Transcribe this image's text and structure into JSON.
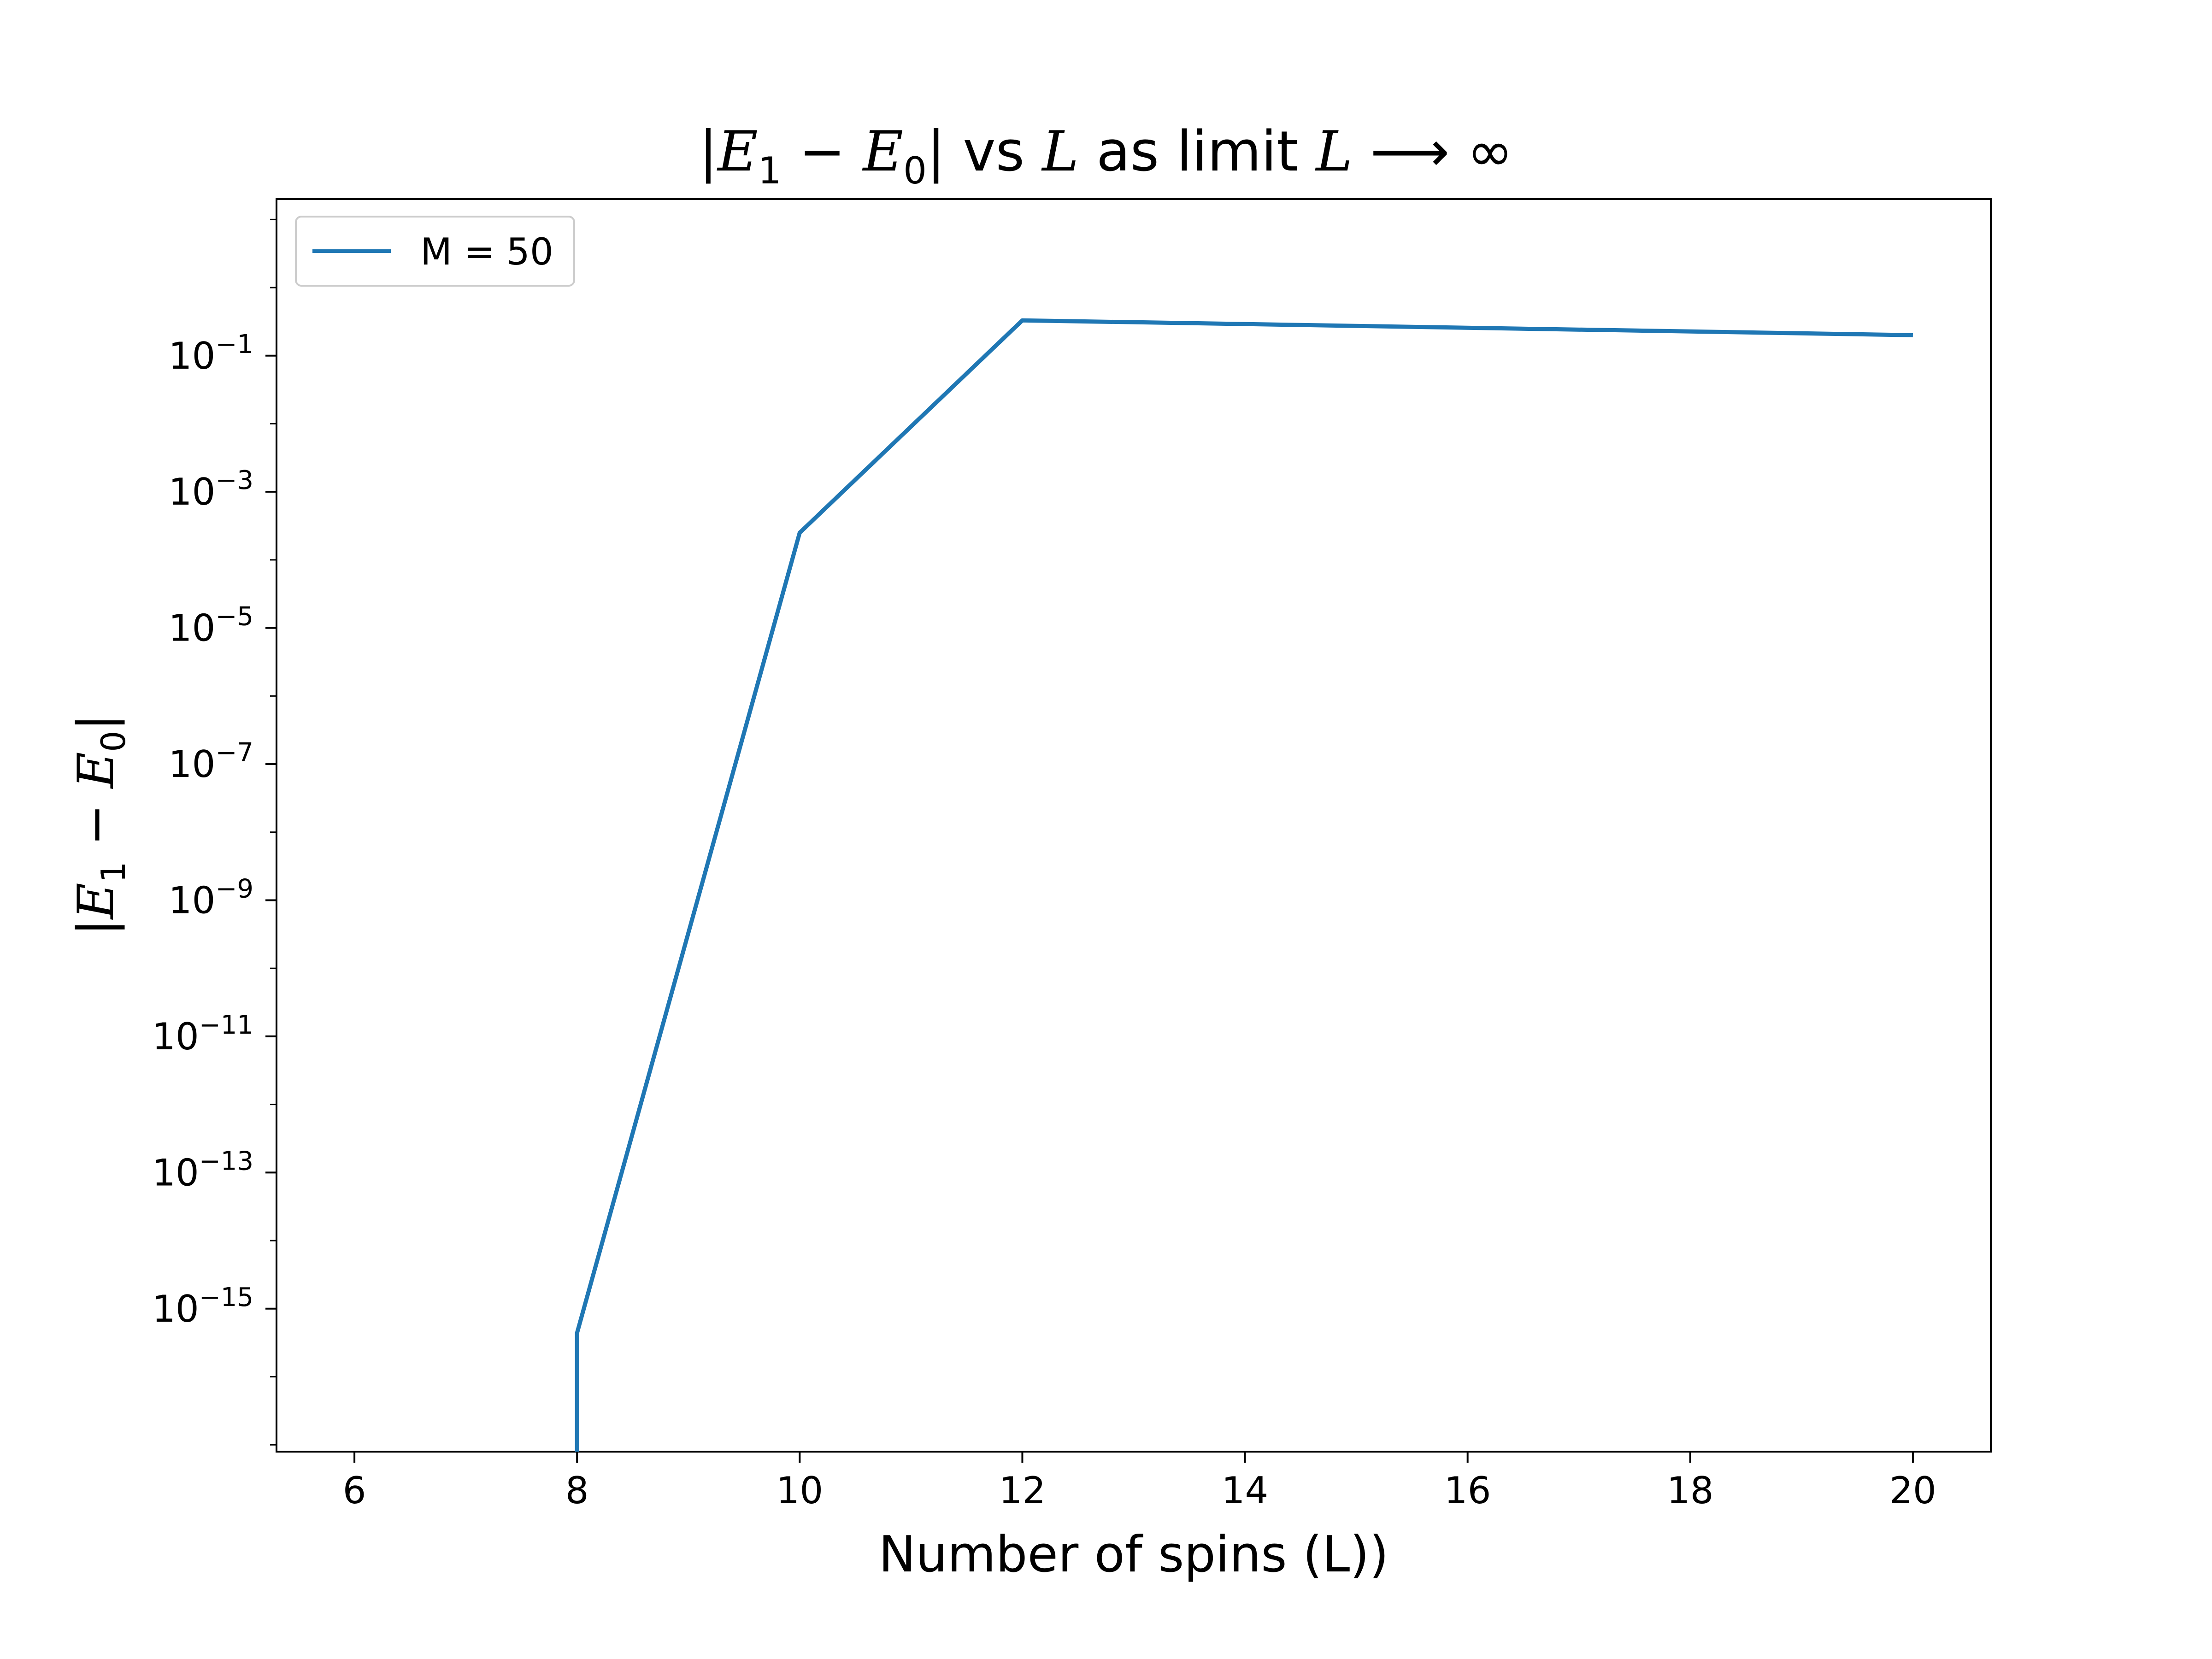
{
  "chart_data": {
    "type": "line",
    "title": {
      "abs_open": "|",
      "e1": "E",
      "e1_sub": "1",
      "minus": " − ",
      "e0": "E",
      "e0_sub": "0",
      "abs_close": "|",
      "vs": " vs ",
      "var1": "L",
      "as_limit": " as limit ",
      "var2": "L",
      "arrow_inf": " ⟶ ∞"
    },
    "xlabel": "Number of spins (L))",
    "ylabel": {
      "abs_open": "|",
      "e1": "E",
      "e1_sub": "1",
      "minus": " − ",
      "e0": "E",
      "e0_sub": "0",
      "abs_close": "|"
    },
    "x_scale": "linear",
    "y_scale": "log",
    "xlim": [
      5.3,
      20.7
    ],
    "ylim_log10": [
      -17.1,
      1.3
    ],
    "xticks": [
      6,
      8,
      10,
      12,
      14,
      16,
      18,
      20
    ],
    "yticks": [
      {
        "base": "10",
        "exp": "−1",
        "log10": -1
      },
      {
        "base": "10",
        "exp": "−3",
        "log10": -3
      },
      {
        "base": "10",
        "exp": "−5",
        "log10": -5
      },
      {
        "base": "10",
        "exp": "−7",
        "log10": -7
      },
      {
        "base": "10",
        "exp": "−9",
        "log10": -9
      },
      {
        "base": "10",
        "exp": "−11",
        "log10": -11
      },
      {
        "base": "10",
        "exp": "−13",
        "log10": -13
      },
      {
        "base": "10",
        "exp": "−15",
        "log10": -15
      }
    ],
    "grid": false,
    "legend_position": "upper-left",
    "series": [
      {
        "name": "M = 50",
        "color": "#1f77b4",
        "points": [
          {
            "x": 8,
            "y": 0
          },
          {
            "x": 8,
            "y": 4.4e-16
          },
          {
            "x": 10,
            "y": 0.00025
          },
          {
            "x": 12,
            "y": 0.33
          },
          {
            "x": 20,
            "y": 0.2
          }
        ]
      }
    ]
  }
}
